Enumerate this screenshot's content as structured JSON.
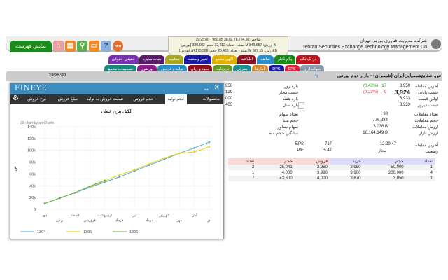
{
  "header": {
    "menu_button": "نمایش فهرست",
    "company_fa": "شرکت مدیریت فناوری بورس تهران",
    "company_en": "Tehran Securities Exchange Technology Management Co",
    "ticker": [
      "19:25:00 - 960.05 38.02 78,704.50:شاخص",
      "[بورس] بسته - تعداد: 32,412 حجم: 330.602 M ارزش: 849.657 B",
      "[فرابورس] بسته - تعداد: 26,483 حجم: 175.308 M ارزش: 607.15 B"
    ],
    "icons": [
      "new-icon",
      "help-icon",
      "message-icon",
      "search-icon",
      "table-icon",
      "home-icon"
    ]
  },
  "tabs_row1": [
    {
      "label": "در یک نگاه",
      "color": "#c0141e"
    },
    {
      "label": "پیام ناظر",
      "color": "#1a8a1a"
    },
    {
      "label": "سابقه",
      "color": "#2a8fc8"
    },
    {
      "label": "اطلاعیه",
      "color": "#8b1020"
    },
    {
      "label": "آگهی مجمع",
      "color": "#e0b000"
    },
    {
      "label": "تغییر وضعیت",
      "color": "#1a1aa0"
    },
    {
      "label": "شناسه",
      "color": "#a8a820"
    },
    {
      "label": "هیات مدیره",
      "color": "#5a1a6a"
    },
    {
      "label": "حقیقی-حقوقی",
      "color": "#7a30b0"
    }
  ],
  "tabs_row2": [
    {
      "label": "سهامداران",
      "color": "#8a9aa8"
    },
    {
      "label": "EPS",
      "color": "#e0203a"
    },
    {
      "label": "DPS",
      "color": "#1a1aa0"
    },
    {
      "label": "آمارها",
      "color": "#d08a30"
    },
    {
      "label": "معرفی",
      "color": "#1a9090"
    },
    {
      "label": "ترازنامه",
      "color": "#6a9a20"
    },
    {
      "label": "سود و زیان",
      "color": "#901020"
    },
    {
      "label": "تولید و فروش",
      "color": "#2a8fc8"
    },
    {
      "label": "پورتفوی",
      "color": "#8a1a8a"
    },
    {
      "label": "تصمیمات مجمع",
      "color": "#1a8a80"
    }
  ],
  "symbol": {
    "title": "س. صنایع‌شیمیایی‌ایران (شیمران) - بازار دوم بورس",
    "clock": "19:25:00"
  },
  "info": {
    "rows": [
      {
        "label": "آخرین معامله",
        "value": "3,950",
        "change": "17",
        "pct": "(0.43%)",
        "changeColor": "#1a9a1a",
        "r_label": "بازه روز",
        "r_value": "950"
      },
      {
        "label": "قیمت پایانی",
        "value": "3,924",
        "change": "9",
        "pct": "(0.23%)",
        "changeColor": "#e0203a",
        "r_label": "قیمت مجاز",
        "r_value": "129"
      },
      {
        "label": "اولین قیمت",
        "value": "3,933",
        "r_label": "بازه هفته",
        "r_value": "000"
      },
      {
        "label": "قیمت دیروز",
        "value": "3,933",
        "r_label": "بازه سال",
        "r_value": "403"
      }
    ],
    "stats": [
      {
        "label": "تعداد معاملات",
        "value": "98",
        "r_label": "تعداد سهام"
      },
      {
        "label": "حجم معاملات",
        "value": "776,284",
        "r_label": "حجم مبنا"
      },
      {
        "label": "ارزش معاملات",
        "value": "3.036 B",
        "r_label": "سهام شناور"
      },
      {
        "label": "ارزش بازار",
        "value": "18,164.149 B",
        "r_label": "میانگین حجم ماه"
      }
    ],
    "last_trade_label": "آخرین معامله",
    "last_trade_time": "12:29:47",
    "status_label": "وضعیت",
    "status_value": "مجاز",
    "eps_label": "EPS",
    "eps": "717",
    "pe_label": "P/E",
    "pe": "5.47"
  },
  "orderbook": {
    "headers": [
      "تعداد",
      "حجم",
      "خرید",
      "فروش",
      "حجم",
      "تعداد"
    ],
    "rows": [
      [
        "1",
        "50,000",
        "3,950",
        "3,950",
        "25,041",
        "2"
      ],
      [
        "4",
        "200,000",
        "3,900",
        "3,990",
        "4,000",
        "1"
      ],
      [
        "1",
        "3,850",
        "3,870",
        "4,000",
        "43,600",
        "7"
      ]
    ]
  },
  "popup": {
    "logo": "FINEYE",
    "tabs": [
      "محصولات",
      "حجم تولید",
      "حجم فروش",
      "نسبت فروش به تولید",
      "مبلغ فروش",
      "نرخ فروش"
    ],
    "active_tab": "حجم تولید"
  },
  "chart_data": {
    "type": "line",
    "title": "الکیل بنزن خطی",
    "ylabel": "تن",
    "credit": "JS chart by amCharts",
    "ylim": [
      0,
      140000
    ],
    "yticks": [
      "0",
      "20k",
      "40k",
      "60k",
      "80k",
      "100k",
      "120k",
      "140k"
    ],
    "categories": [
      "دی",
      "بهمن",
      "اسفند",
      "فروردین",
      "اردیبهشت",
      "خرداد",
      "تیر",
      "مرداد",
      "شهریور",
      "مهر",
      "آبان",
      "آذر"
    ],
    "series": [
      {
        "name": "1394",
        "color": "#4aa8e0",
        "values": [
          10000,
          19000,
          28000,
          37000,
          46000,
          55000,
          65000,
          75000,
          85000,
          95000,
          104000,
          114000
        ]
      },
      {
        "name": "1395",
        "color": "#f0d000",
        "values": [
          null,
          null,
          null,
          38000,
          48000,
          58000,
          67000,
          77000,
          87000,
          95000,
          97000,
          106000
        ]
      },
      {
        "name": "1396",
        "color": "#6ab040",
        "values": [
          10000,
          19000,
          28000,
          39000,
          49000,
          null,
          null,
          null,
          null,
          null,
          null,
          null
        ]
      }
    ],
    "legend": "bottom",
    "grid": true
  }
}
